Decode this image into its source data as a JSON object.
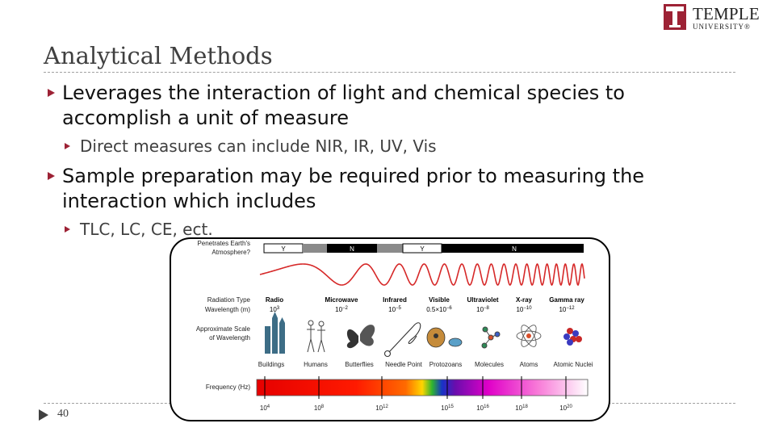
{
  "logo": {
    "name": "TEMPLE",
    "sub": "UNIVERSITY®"
  },
  "slide": {
    "title": "Analytical Methods",
    "page_number": "40"
  },
  "bullets": [
    {
      "text": "Leverages the interaction of light and chemical species to accomplish a unit of measure",
      "sub": [
        "Direct measures can include NIR, IR, UV, Vis"
      ]
    },
    {
      "text": "Sample preparation may be required prior to measuring the interaction which includes",
      "sub": [
        "TLC, LC, CE, ect."
      ]
    }
  ],
  "spectrum": {
    "penetrates_label_1": "Penetrates Earth's",
    "penetrates_label_2": "Atmosphere?",
    "atmosphere": [
      "Y",
      "N",
      "Y",
      "N"
    ],
    "radiation_type_label": "Radiation Type",
    "wavelength_label": "Wavelength (m)",
    "scale_label_1": "Approximate Scale",
    "scale_label_2": "of Wavelength",
    "frequency_label": "Frequency (Hz)",
    "types": [
      {
        "name": "Radio",
        "wl": "10",
        "exp": "3"
      },
      {
        "name": "Microwave",
        "wl": "10",
        "exp": "−2"
      },
      {
        "name": "Infrared",
        "wl": "10",
        "exp": "−5"
      },
      {
        "name": "Visible",
        "wl": "0.5×10",
        "exp": "−6"
      },
      {
        "name": "Ultraviolet",
        "wl": "10",
        "exp": "−8"
      },
      {
        "name": "X-ray",
        "wl": "10",
        "exp": "−10"
      },
      {
        "name": "Gamma ray",
        "wl": "10",
        "exp": "−12"
      }
    ],
    "scales": [
      "Buildings",
      "Humans",
      "Butterflies",
      "Needle Point",
      "Protozoans",
      "Molecules",
      "Atoms",
      "Atomic Nuclei"
    ],
    "frequencies": [
      {
        "base": "10",
        "exp": "4"
      },
      {
        "base": "10",
        "exp": "8"
      },
      {
        "base": "10",
        "exp": "12"
      },
      {
        "base": "10",
        "exp": "15"
      },
      {
        "base": "10",
        "exp": "16"
      },
      {
        "base": "10",
        "exp": "18"
      },
      {
        "base": "10",
        "exp": "20"
      }
    ],
    "colors": {
      "wave": "#d62828",
      "bar_dark": "#000000",
      "bar_gray": "#8a8a8a"
    }
  },
  "colors": {
    "accent": "#9d2235",
    "title": "#404040"
  }
}
